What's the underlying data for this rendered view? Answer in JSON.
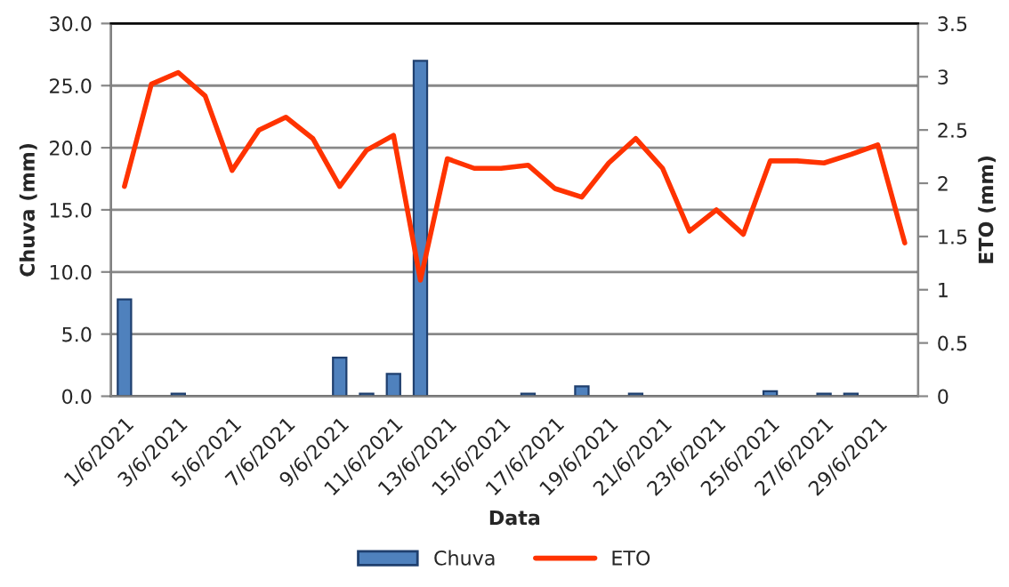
{
  "chart_data": {
    "type": "bar",
    "categories": [
      "1/6/2021",
      null,
      "3/6/2021",
      null,
      "5/6/2021",
      null,
      "7/6/2021",
      null,
      "9/6/2021",
      null,
      "11/6/2021",
      null,
      "13/6/2021",
      null,
      "15/6/2021",
      null,
      "17/6/2021",
      null,
      "19/6/2021",
      null,
      "21/6/2021",
      null,
      "23/6/2021",
      null,
      "25/6/2021",
      null,
      "27/6/2021",
      null,
      "29/6/2021",
      null
    ],
    "series": [
      {
        "name": "Chuva",
        "color": "#4f81bd",
        "values": [
          7.8,
          null,
          0.2,
          null,
          null,
          null,
          null,
          null,
          3.1,
          0.2,
          1.8,
          27.0,
          null,
          null,
          null,
          0.2,
          null,
          0.8,
          null,
          0.2,
          null,
          null,
          null,
          null,
          0.4,
          null,
          0.2,
          0.2,
          null,
          null
        ]
      },
      {
        "name": "ETO",
        "type": "line",
        "axis": "y2",
        "color": "#ff3300",
        "values": [
          1.97,
          2.93,
          3.04,
          2.82,
          2.12,
          2.5,
          2.62,
          2.42,
          1.97,
          2.31,
          2.45,
          1.09,
          2.23,
          2.14,
          2.14,
          2.17,
          1.95,
          1.87,
          2.19,
          2.42,
          2.14,
          1.55,
          1.75,
          1.52,
          2.21,
          2.21,
          2.19,
          2.27,
          2.36,
          1.44
        ]
      }
    ],
    "xlabel": "Data",
    "ylabel": "Chuva (mm)",
    "y2label": "ETO (mm)",
    "ylim": [
      0,
      30
    ],
    "yticks": [
      {
        "value": 0,
        "label": "0.0"
      },
      {
        "value": 5,
        "label": "5.0"
      },
      {
        "value": 10,
        "label": "10.0"
      },
      {
        "value": 15,
        "label": "15.0"
      },
      {
        "value": 20,
        "label": "20.0"
      },
      {
        "value": 25,
        "label": "25.0"
      },
      {
        "value": 30,
        "label": "30.0"
      }
    ],
    "y2lim": [
      0,
      3.5
    ],
    "y2ticks": [
      0,
      0.5,
      1,
      1.5,
      2,
      2.5,
      3,
      3.5
    ],
    "grid": "y",
    "legend": "bottom",
    "marker": "none",
    "line_style": "solid"
  }
}
